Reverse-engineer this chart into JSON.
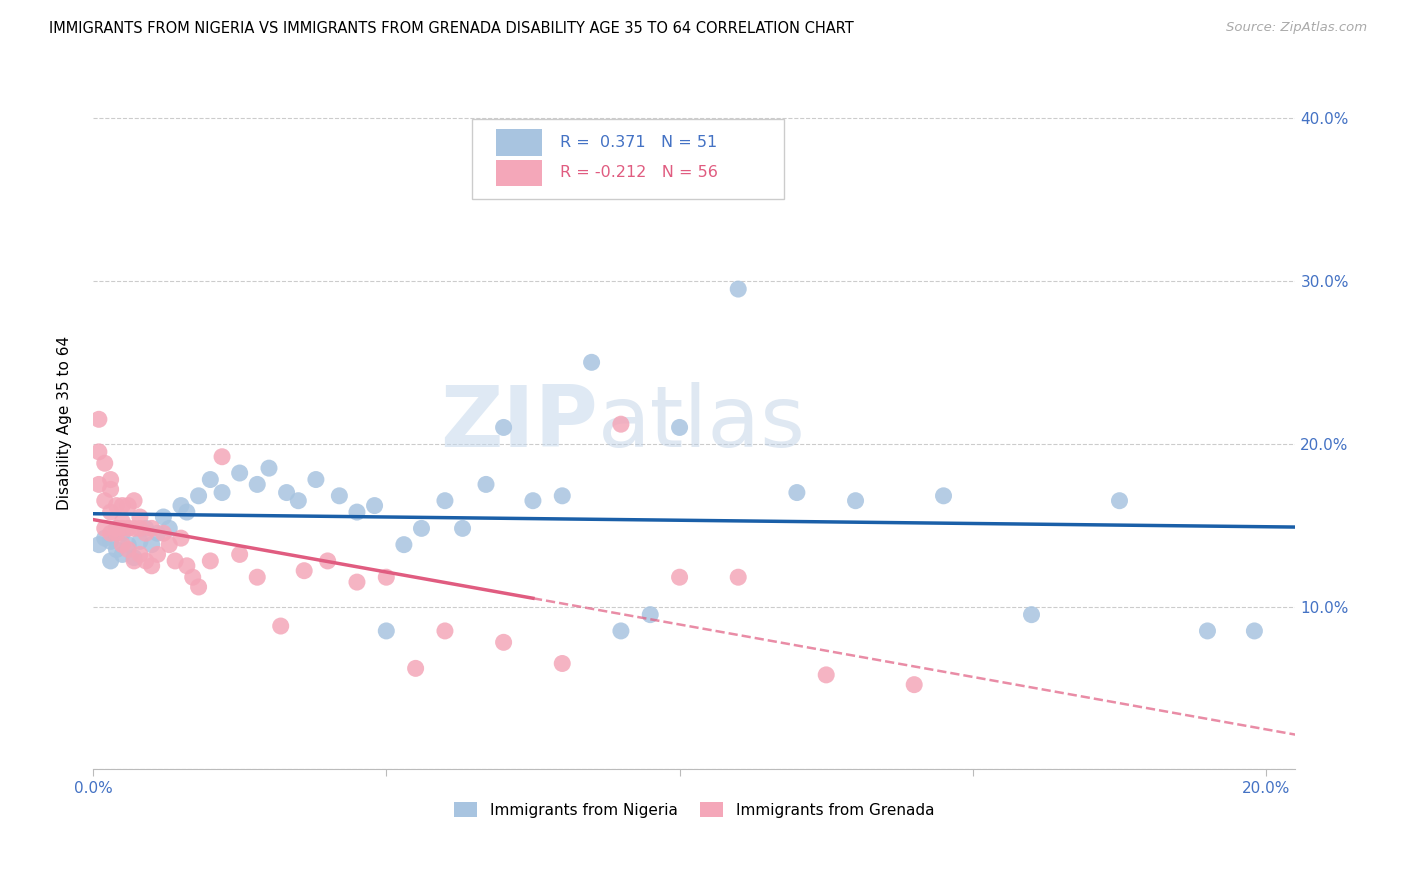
{
  "title": "IMMIGRANTS FROM NIGERIA VS IMMIGRANTS FROM GRENADA DISABILITY AGE 35 TO 64 CORRELATION CHART",
  "source": "Source: ZipAtlas.com",
  "ylabel": "Disability Age 35 to 64",
  "xlim": [
    0.0,
    0.205
  ],
  "ylim": [
    0.0,
    0.425
  ],
  "xticks": [
    0.0,
    0.05,
    0.1,
    0.15,
    0.2
  ],
  "yticks": [
    0.0,
    0.1,
    0.2,
    0.3,
    0.4
  ],
  "color_nigeria": "#a8c4e0",
  "color_grenada": "#f4a7b9",
  "line_color_nigeria": "#1a5fa8",
  "line_color_grenada": "#e05c80",
  "R_nigeria": 0.371,
  "N_nigeria": 51,
  "R_grenada": -0.212,
  "N_grenada": 56,
  "watermark_ZIP": "ZIP",
  "watermark_atlas": "atlas",
  "nigeria_x": [
    0.001,
    0.002,
    0.003,
    0.003,
    0.004,
    0.004,
    0.005,
    0.005,
    0.006,
    0.007,
    0.008,
    0.009,
    0.01,
    0.011,
    0.012,
    0.013,
    0.015,
    0.016,
    0.018,
    0.02,
    0.022,
    0.025,
    0.028,
    0.03,
    0.033,
    0.035,
    0.038,
    0.042,
    0.045,
    0.048,
    0.05,
    0.053,
    0.056,
    0.06,
    0.063,
    0.067,
    0.07,
    0.075,
    0.08,
    0.085,
    0.09,
    0.095,
    0.1,
    0.11,
    0.12,
    0.13,
    0.145,
    0.16,
    0.175,
    0.19,
    0.198
  ],
  "nigeria_y": [
    0.138,
    0.142,
    0.128,
    0.14,
    0.135,
    0.148,
    0.132,
    0.145,
    0.138,
    0.13,
    0.14,
    0.148,
    0.138,
    0.145,
    0.155,
    0.148,
    0.162,
    0.158,
    0.168,
    0.178,
    0.17,
    0.182,
    0.175,
    0.185,
    0.17,
    0.165,
    0.178,
    0.168,
    0.158,
    0.162,
    0.085,
    0.138,
    0.148,
    0.165,
    0.148,
    0.175,
    0.21,
    0.165,
    0.168,
    0.25,
    0.085,
    0.095,
    0.21,
    0.295,
    0.17,
    0.165,
    0.168,
    0.095,
    0.165,
    0.085,
    0.085
  ],
  "grenada_x": [
    0.001,
    0.001,
    0.001,
    0.002,
    0.002,
    0.002,
    0.003,
    0.003,
    0.003,
    0.003,
    0.004,
    0.004,
    0.004,
    0.005,
    0.005,
    0.005,
    0.005,
    0.006,
    0.006,
    0.006,
    0.007,
    0.007,
    0.007,
    0.008,
    0.008,
    0.008,
    0.009,
    0.009,
    0.01,
    0.01,
    0.011,
    0.012,
    0.013,
    0.014,
    0.015,
    0.016,
    0.017,
    0.018,
    0.02,
    0.022,
    0.025,
    0.028,
    0.032,
    0.036,
    0.04,
    0.045,
    0.05,
    0.055,
    0.06,
    0.07,
    0.08,
    0.09,
    0.1,
    0.11,
    0.125,
    0.14
  ],
  "grenada_y": [
    0.215,
    0.195,
    0.175,
    0.188,
    0.165,
    0.148,
    0.172,
    0.178,
    0.158,
    0.145,
    0.148,
    0.162,
    0.145,
    0.138,
    0.152,
    0.162,
    0.148,
    0.135,
    0.148,
    0.162,
    0.128,
    0.148,
    0.165,
    0.132,
    0.148,
    0.155,
    0.128,
    0.145,
    0.125,
    0.148,
    0.132,
    0.145,
    0.138,
    0.128,
    0.142,
    0.125,
    0.118,
    0.112,
    0.128,
    0.192,
    0.132,
    0.118,
    0.088,
    0.122,
    0.128,
    0.115,
    0.118,
    0.062,
    0.085,
    0.078,
    0.065,
    0.212,
    0.118,
    0.118,
    0.058,
    0.052
  ]
}
